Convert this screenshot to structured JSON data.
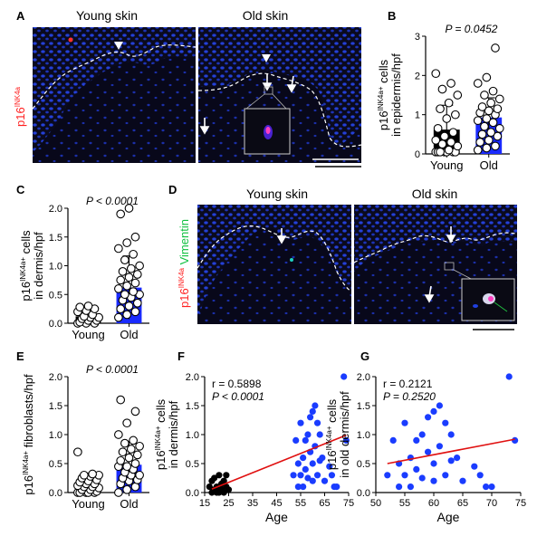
{
  "panel_letters": {
    "a": "A",
    "b": "B",
    "c": "C",
    "d": "D",
    "e": "E",
    "f": "F",
    "g": "G"
  },
  "colors": {
    "micro_bg": "#0a0a1a",
    "nuclei": "#1f3ccf",
    "bar_young": "#000000",
    "bar_old": "#1a2bff",
    "dot_young": "#000000",
    "dot_old": "#1a3cff",
    "fit_line": "#e01010",
    "p16_text": "#ff2020",
    "vimentin_text": "#10c040"
  },
  "panel_a": {
    "young_title": "Young skin",
    "old_title": "Old skin",
    "stain_main": "p16",
    "stain_sup": "INK4a"
  },
  "panel_d": {
    "young_title": "Young skin",
    "old_title": "Old skin",
    "stain_main": "p16",
    "stain_sup": "INK4a",
    "stain2": " Vimentin"
  },
  "chart_data": [
    {
      "panel": "B",
      "type": "bar",
      "categories": [
        "Young",
        "Old"
      ],
      "values": [
        0.62,
        0.93
      ],
      "errors": [
        0.62,
        0.5
      ],
      "points": [
        [
          0.05,
          0.05,
          0.05,
          0.05,
          0.05,
          0.05,
          0.05,
          0.1,
          0.2,
          0.25,
          0.3,
          0.35,
          0.45,
          0.55,
          0.65,
          0.9,
          1.0,
          1.15,
          1.3,
          1.5,
          1.65,
          1.8,
          2.05
        ],
        [
          0.1,
          0.15,
          0.2,
          0.3,
          0.35,
          0.45,
          0.5,
          0.55,
          0.65,
          0.7,
          0.8,
          0.85,
          0.9,
          1.0,
          1.05,
          1.1,
          1.15,
          1.2,
          1.3,
          1.4,
          1.5,
          1.6,
          1.8,
          1.95,
          2.7
        ]
      ],
      "annotation": "P = 0.0452",
      "ylabel_main": "p16",
      "ylabel_sup": "INK4a+",
      "ylabel_rest": " cells",
      "ylabel_line2": "in epidermis/hpf",
      "ylim": [
        0,
        3
      ],
      "yticks": [
        "0",
        "1",
        "2",
        "3"
      ]
    },
    {
      "panel": "C",
      "type": "bar",
      "categories": [
        "Young",
        "Old"
      ],
      "values": [
        0.12,
        0.62
      ],
      "errors": [
        0.15,
        0.55
      ],
      "points": [
        [
          0.0,
          0.0,
          0.0,
          0.02,
          0.05,
          0.05,
          0.08,
          0.1,
          0.1,
          0.12,
          0.15,
          0.2,
          0.22,
          0.25,
          0.28,
          0.3
        ],
        [
          0.1,
          0.15,
          0.2,
          0.25,
          0.3,
          0.35,
          0.4,
          0.45,
          0.5,
          0.5,
          0.55,
          0.6,
          0.65,
          0.7,
          0.75,
          0.8,
          0.85,
          0.9,
          0.95,
          1.0,
          1.1,
          1.2,
          1.3,
          1.4,
          1.5,
          1.9,
          2.0
        ]
      ],
      "annotation": "P < 0.0001",
      "ylabel_main": "p16",
      "ylabel_sup": "INK4a+",
      "ylabel_rest": " cells",
      "ylabel_line2": "in dermis/hpf",
      "ylim": [
        0,
        2
      ],
      "yticks": [
        "0.0",
        "0.5",
        "1.0",
        "1.5",
        "2.0"
      ]
    },
    {
      "panel": "E",
      "type": "bar",
      "categories": [
        "Young",
        "Old"
      ],
      "values": [
        0.13,
        0.48
      ],
      "errors": [
        0.18,
        0.4
      ],
      "points": [
        [
          0.0,
          0.0,
          0.0,
          0.0,
          0.0,
          0.02,
          0.05,
          0.05,
          0.08,
          0.1,
          0.1,
          0.12,
          0.15,
          0.15,
          0.18,
          0.2,
          0.22,
          0.25,
          0.28,
          0.3,
          0.3,
          0.32,
          0.7
        ],
        [
          0.0,
          0.05,
          0.1,
          0.15,
          0.2,
          0.22,
          0.25,
          0.3,
          0.3,
          0.35,
          0.4,
          0.45,
          0.45,
          0.5,
          0.55,
          0.6,
          0.65,
          0.7,
          0.75,
          0.8,
          0.85,
          0.9,
          1.0,
          1.2,
          1.4,
          1.6
        ]
      ],
      "annotation": "P < 0.0001",
      "ylabel_main": "p16",
      "ylabel_sup": "INK4a+",
      "ylabel_rest": " fibroblasts/hpf",
      "ylabel_line2": "",
      "ylim": [
        0,
        2
      ],
      "yticks": [
        "0.0",
        "0.5",
        "1.0",
        "1.5",
        "2.0"
      ]
    },
    {
      "panel": "F",
      "type": "scatter",
      "xlabel": "Age",
      "xlim": [
        15,
        75
      ],
      "xticks": [
        "15",
        "25",
        "35",
        "45",
        "55",
        "65",
        "75"
      ],
      "ylim": [
        0,
        2
      ],
      "yticks": [
        "0.0",
        "0.5",
        "1.0",
        "1.5",
        "2.0"
      ],
      "ylabel_main": "p16",
      "ylabel_sup": "INK4a+",
      "ylabel_rest": " cells",
      "ylabel_line2": "in dermis/hpf",
      "stat1": "r = 0.5898",
      "stat2": "P < 0.0001",
      "fit": [
        [
          18,
          0.06
        ],
        [
          74,
          0.99
        ]
      ],
      "series": [
        {
          "points": [
            [
              17,
              0.1
            ],
            [
              18,
              0.0
            ],
            [
              18,
              0.2
            ],
            [
              19,
              0.05
            ],
            [
              19,
              0.25
            ],
            [
              20,
              0.0
            ],
            [
              20,
              0.1
            ],
            [
              21,
              0.3
            ],
            [
              21,
              0.0
            ],
            [
              22,
              0.15
            ],
            [
              22,
              0.05
            ],
            [
              23,
              0.2
            ],
            [
              23,
              0.0
            ],
            [
              24,
              0.3
            ],
            [
              24,
              0.1
            ],
            [
              25,
              0.05
            ]
          ]
        },
        {
          "points": [
            [
              52,
              0.3
            ],
            [
              53,
              0.9
            ],
            [
              54,
              0.1
            ],
            [
              54,
              0.5
            ],
            [
              55,
              1.2
            ],
            [
              55,
              0.3
            ],
            [
              56,
              0.6
            ],
            [
              56,
              0.1
            ],
            [
              57,
              0.9
            ],
            [
              57,
              0.4
            ],
            [
              58,
              1.0
            ],
            [
              58,
              0.25
            ],
            [
              59,
              0.7
            ],
            [
              59,
              1.3
            ],
            [
              60,
              0.5
            ],
            [
              60,
              1.4
            ],
            [
              60,
              0.2
            ],
            [
              61,
              1.5
            ],
            [
              61,
              0.8
            ],
            [
              62,
              1.2
            ],
            [
              62,
              0.3
            ],
            [
              63,
              1.0
            ],
            [
              63,
              0.55
            ],
            [
              64,
              0.6
            ],
            [
              65,
              0.2
            ],
            [
              67,
              0.45
            ],
            [
              68,
              0.3
            ],
            [
              69,
              0.1
            ],
            [
              70,
              0.1
            ],
            [
              73,
              2.0
            ],
            [
              74,
              0.9
            ]
          ]
        }
      ]
    },
    {
      "panel": "G",
      "type": "scatter",
      "xlabel": "Age",
      "xlim": [
        50,
        75
      ],
      "xticks": [
        "50",
        "55",
        "60",
        "65",
        "70",
        "75"
      ],
      "ylim": [
        0,
        2
      ],
      "yticks": [
        "0.0",
        "0.5",
        "1.0",
        "1.5",
        "2.0"
      ],
      "ylabel_main": "p16",
      "ylabel_sup": "INK4a+",
      "ylabel_rest": " cells",
      "ylabel_line2": "in old dermis/hpf",
      "stat1": "r = 0.2121",
      "stat2": "P = 0.2520",
      "fit": [
        [
          52,
          0.5
        ],
        [
          74,
          0.92
        ]
      ],
      "series": [
        {
          "points": [
            [
              52,
              0.3
            ],
            [
              53,
              0.9
            ],
            [
              54,
              0.1
            ],
            [
              54,
              0.5
            ],
            [
              55,
              1.2
            ],
            [
              55,
              0.3
            ],
            [
              56,
              0.6
            ],
            [
              56,
              0.1
            ],
            [
              57,
              0.9
            ],
            [
              57,
              0.4
            ],
            [
              58,
              1.0
            ],
            [
              58,
              0.25
            ],
            [
              59,
              0.7
            ],
            [
              59,
              1.3
            ],
            [
              60,
              0.5
            ],
            [
              60,
              1.4
            ],
            [
              60,
              0.2
            ],
            [
              61,
              1.5
            ],
            [
              61,
              0.8
            ],
            [
              62,
              1.2
            ],
            [
              62,
              0.3
            ],
            [
              63,
              1.0
            ],
            [
              63,
              0.55
            ],
            [
              64,
              0.6
            ],
            [
              65,
              0.2
            ],
            [
              67,
              0.45
            ],
            [
              68,
              0.3
            ],
            [
              69,
              0.1
            ],
            [
              70,
              0.1
            ],
            [
              73,
              2.0
            ],
            [
              74,
              0.9
            ]
          ]
        }
      ]
    }
  ]
}
